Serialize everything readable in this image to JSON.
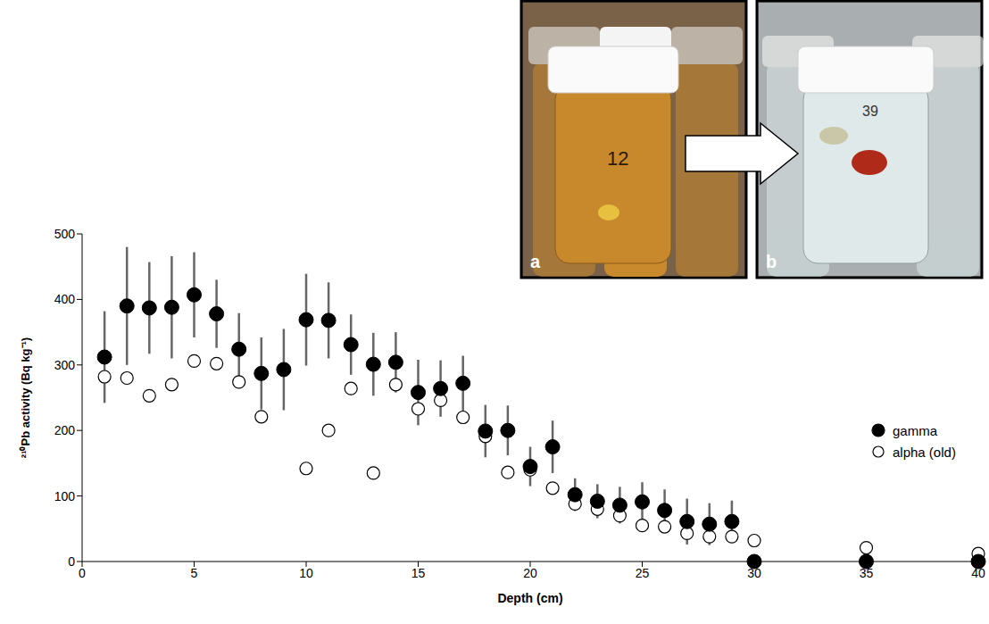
{
  "chart_data": {
    "type": "scatter",
    "x_label": "Depth (cm)",
    "y_label": "²¹⁰Pb activity (Bq kg⁻¹)",
    "xlim": [
      0,
      40
    ],
    "xticks": [
      0,
      5,
      10,
      15,
      20,
      25,
      30,
      35,
      40
    ],
    "ylim": [
      0,
      500
    ],
    "yticks": [
      0,
      100,
      200,
      300,
      400,
      500
    ],
    "grid": false,
    "legend": "right",
    "series": [
      {
        "name": "gamma",
        "color": "#000000",
        "marker": "filled_circle",
        "x": [
          1,
          2,
          3,
          4,
          5,
          6,
          7,
          8,
          9,
          10,
          11,
          12,
          13,
          14,
          15,
          16,
          17,
          18,
          19,
          20,
          21,
          22,
          23,
          24,
          25,
          26,
          27,
          28,
          29,
          30,
          35,
          40
        ],
        "values": [
          312,
          390,
          387,
          388,
          407,
          378,
          324,
          287,
          293,
          369,
          368,
          331,
          301,
          304,
          258,
          264,
          272,
          199,
          200,
          145,
          175,
          102,
          92,
          86,
          91,
          78,
          61,
          57,
          61,
          0,
          0,
          0
        ],
        "errors": [
          70,
          90,
          70,
          78,
          65,
          52,
          55,
          55,
          62,
          70,
          58,
          46,
          48,
          46,
          50,
          43,
          42,
          40,
          38,
          30,
          40,
          25,
          26,
          28,
          30,
          32,
          35,
          32,
          32,
          0,
          0,
          0
        ]
      },
      {
        "name": "alpha (old)",
        "color": "#000000",
        "marker": "open_circle",
        "x": [
          1,
          2,
          3,
          4,
          5,
          6,
          7,
          8,
          10,
          11,
          12,
          13,
          14,
          15,
          16,
          17,
          18,
          19,
          20,
          21,
          22,
          23,
          24,
          25,
          26,
          27,
          28,
          29,
          30,
          35,
          40
        ],
        "values": [
          282,
          280,
          253,
          270,
          306,
          302,
          274,
          221,
          142,
          200,
          264,
          135,
          270,
          233,
          246,
          220,
          191,
          136,
          140,
          112,
          88,
          80,
          70,
          55,
          53,
          43,
          38,
          38,
          32,
          21,
          12
        ]
      }
    ],
    "insets": [
      {
        "label": "a",
        "jar_number": "12"
      },
      {
        "label": "b",
        "jar_number": "39"
      }
    ]
  }
}
